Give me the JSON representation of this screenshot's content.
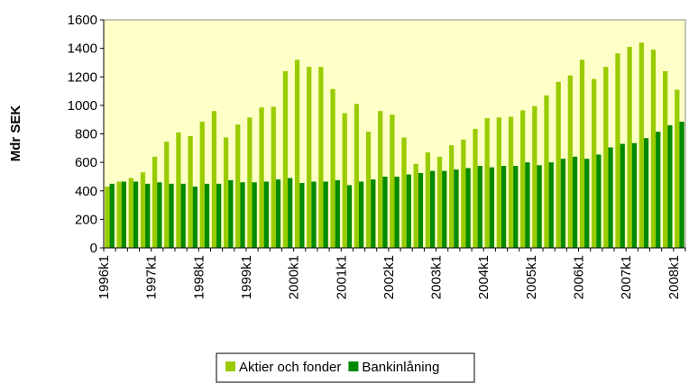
{
  "chart_data": {
    "type": "bar",
    "y_label": "Mdr SEK",
    "categories": [
      "1996k1",
      null,
      null,
      null,
      "1997k1",
      null,
      null,
      null,
      "1998k1",
      null,
      null,
      null,
      "1999k1",
      null,
      null,
      null,
      "2000k1",
      null,
      null,
      null,
      "2001k1",
      null,
      null,
      null,
      "2002k1",
      null,
      null,
      null,
      "2003k1",
      null,
      null,
      null,
      "2004k1",
      null,
      null,
      null,
      "2005k1",
      null,
      null,
      null,
      "2006k1",
      null,
      null,
      null,
      "2007k1",
      null,
      null,
      null,
      "2008k1"
    ],
    "series": [
      {
        "name": "Aktier och fonder",
        "color": "#99cc00",
        "values": [
          430,
          465,
          490,
          530,
          640,
          745,
          810,
          785,
          885,
          960,
          775,
          865,
          915,
          985,
          990,
          1240,
          1320,
          1270,
          1270,
          1115,
          945,
          1010,
          815,
          960,
          935,
          775,
          590,
          670,
          640,
          720,
          760,
          835,
          910,
          915,
          920,
          965,
          995,
          1070,
          1165,
          1210,
          1320,
          1185,
          1270,
          1365,
          1410,
          1440,
          1390,
          1240,
          1110
        ]
      },
      {
        "name": "Bankinlåning",
        "color": "#008a00",
        "values": [
          450,
          465,
          465,
          450,
          460,
          450,
          450,
          430,
          450,
          450,
          475,
          460,
          460,
          465,
          480,
          490,
          455,
          465,
          465,
          475,
          440,
          465,
          480,
          500,
          500,
          515,
          525,
          540,
          540,
          550,
          560,
          575,
          565,
          575,
          575,
          600,
          580,
          600,
          625,
          640,
          625,
          655,
          705,
          730,
          735,
          770,
          815,
          860,
          885
        ]
      }
    ],
    "ylim": [
      0,
      1600
    ],
    "yticks": [
      0,
      200,
      400,
      600,
      800,
      1000,
      1200,
      1400,
      1600
    ],
    "grid": false,
    "plot_background": "#ffffc8",
    "legend": "bottom"
  }
}
